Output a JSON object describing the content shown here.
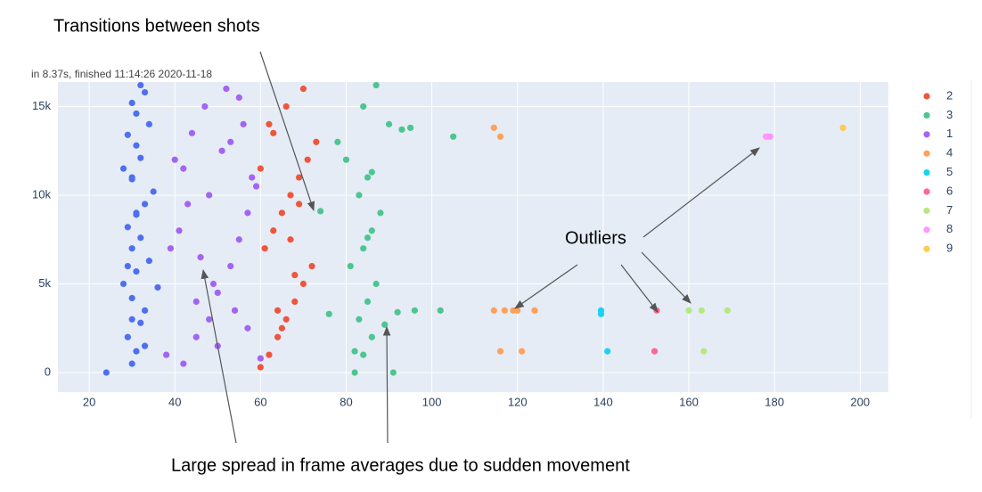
{
  "chart_data": {
    "type": "scatter",
    "subtitle": "in 8.37s, finished 11:14:26 2020-11-18",
    "annotations": [
      "Transitions between shots",
      "Outliers",
      "Large spread in frame averages due to sudden movement"
    ],
    "xlim": [
      12.7,
      206.6
    ],
    "ylim": [
      -1105,
      16380
    ],
    "xticks": [
      20,
      40,
      60,
      80,
      100,
      120,
      140,
      160,
      180,
      200
    ],
    "yticks": [
      0,
      {
        "value": 5000,
        "label": "5k"
      },
      {
        "value": 10000,
        "label": "10k"
      },
      {
        "value": 15000,
        "label": "15k"
      }
    ],
    "grid": true,
    "legend": "right",
    "series": [
      {
        "color": "#4f6ff0",
        "x": [
          24,
          30,
          31,
          29,
          32,
          33,
          30,
          28,
          31,
          34,
          30,
          32,
          29,
          31,
          33,
          35,
          30,
          28,
          32,
          31,
          29,
          34,
          31,
          30,
          33,
          32,
          30,
          31,
          29,
          33,
          36,
          30
        ],
        "y": [
          0,
          500,
          1200,
          2000,
          2800,
          3500,
          4200,
          5000,
          5700,
          6300,
          7000,
          7600,
          8200,
          8900,
          9500,
          10200,
          10900,
          11500,
          12100,
          12800,
          13400,
          14000,
          14600,
          15200,
          15800,
          16200,
          3000,
          9000,
          6000,
          1500,
          4800,
          11000
        ]
      },
      {
        "name": "2",
        "color": "#ef553b",
        "x": [
          60,
          62,
          64,
          66,
          68,
          70,
          72,
          61,
          63,
          65,
          67,
          69,
          71,
          73,
          62,
          66,
          70,
          64,
          68,
          60,
          65,
          69,
          67,
          63
        ],
        "y": [
          300,
          1000,
          2000,
          3000,
          4000,
          5000,
          6000,
          7000,
          8000,
          9000,
          10000,
          11000,
          12000,
          13000,
          14000,
          15000,
          16000,
          3500,
          5500,
          11500,
          2500,
          9500,
          7500,
          13500
        ]
      },
      {
        "name": "3",
        "color": "#4cc68f",
        "x": [
          74,
          82,
          84,
          86,
          83,
          85,
          87,
          81,
          84,
          86,
          88,
          83,
          85,
          80,
          78,
          90,
          93,
          95,
          92,
          89,
          96,
          105,
          102,
          91,
          76,
          84,
          87,
          82,
          85,
          86
        ],
        "y": [
          9100,
          0,
          1000,
          2000,
          3000,
          4000,
          5000,
          6000,
          7000,
          8000,
          9000,
          10000,
          11000,
          12000,
          13000,
          14000,
          13700,
          13800,
          3400,
          2700,
          3500,
          13300,
          3500,
          0,
          3300,
          15000,
          16200,
          1200,
          7600,
          11300
        ]
      },
      {
        "name": "1",
        "color": "#a464f2",
        "x": [
          38,
          42,
          45,
          48,
          50,
          53,
          55,
          57,
          59,
          40,
          44,
          47,
          52,
          56,
          58,
          41,
          46,
          49,
          54,
          57,
          39,
          43,
          51,
          55,
          60,
          48,
          45,
          53,
          50,
          42
        ],
        "y": [
          1000,
          500,
          2000,
          3000,
          4500,
          6000,
          7500,
          9000,
          10500,
          12000,
          13500,
          15000,
          16000,
          14000,
          11000,
          8000,
          6500,
          5000,
          3500,
          2500,
          7000,
          9500,
          12500,
          15500,
          800,
          10000,
          4000,
          13000,
          1500,
          11500
        ]
      },
      {
        "name": "4",
        "color": "#ffa15a",
        "x": [
          114.5,
          116,
          114.5,
          116,
          117,
          119,
          120,
          121,
          124
        ],
        "y": [
          13800,
          13300,
          3500,
          1200,
          3500,
          3500,
          3500,
          1200,
          3500
        ]
      },
      {
        "name": "5",
        "color": "#19d3f3",
        "x": [
          139.5,
          139.5,
          141
        ],
        "y": [
          3300,
          3500,
          1200
        ]
      },
      {
        "name": "6",
        "color": "#ff6692",
        "x": [
          152.5,
          152
        ],
        "y": [
          3500,
          1200
        ]
      },
      {
        "name": "7",
        "color": "#b6e880",
        "x": [
          160,
          163,
          163.5,
          169
        ],
        "y": [
          3500,
          3500,
          1200,
          3500
        ]
      },
      {
        "name": "8",
        "color": "#ff97ff",
        "x": [
          178,
          178.5,
          179
        ],
        "y": [
          13300,
          13300,
          13300
        ]
      },
      {
        "name": "9",
        "color": "#fecb52",
        "x": [
          196
        ],
        "y": [
          13800
        ]
      }
    ]
  }
}
